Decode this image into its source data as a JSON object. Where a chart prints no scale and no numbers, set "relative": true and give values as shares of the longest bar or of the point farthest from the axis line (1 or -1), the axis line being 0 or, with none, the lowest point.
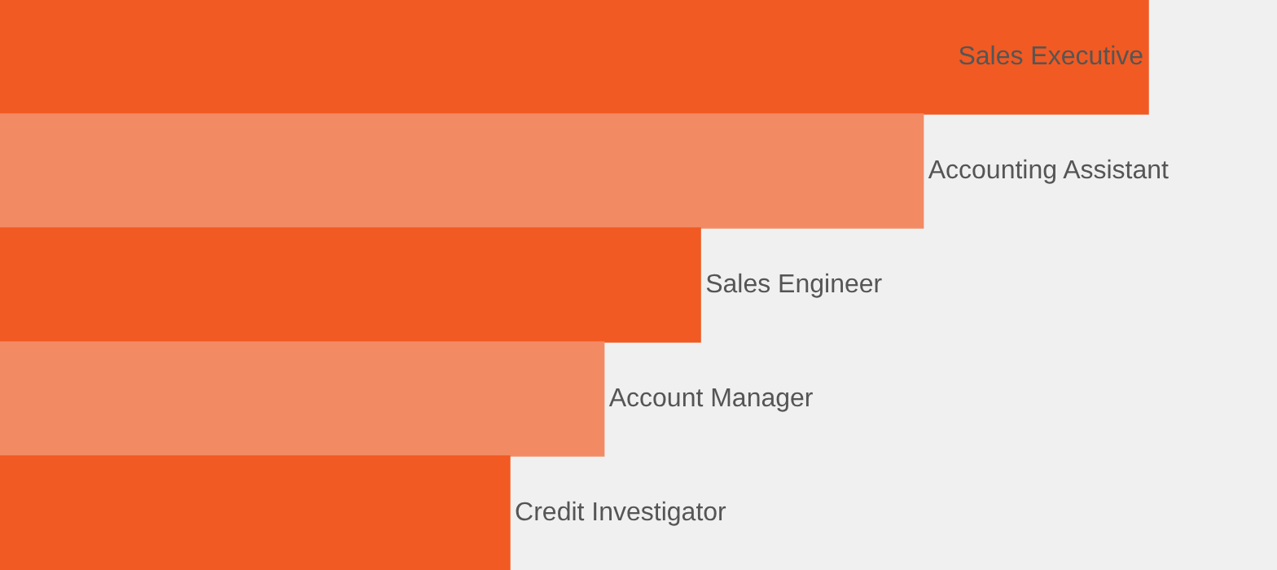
{
  "chart_data": {
    "type": "bar",
    "orientation": "horizontal",
    "relative": true,
    "categories": [
      "Sales Executive",
      "Accounting Assistant",
      "Sales Engineer",
      "Account Manager",
      "Credit Investigator"
    ],
    "values": [
      1,
      0.804,
      0.61,
      0.526,
      0.444
    ],
    "colors": [
      "#f15a22",
      "#f28b64",
      "#f15a22",
      "#f28b64",
      "#f15a22"
    ]
  }
}
